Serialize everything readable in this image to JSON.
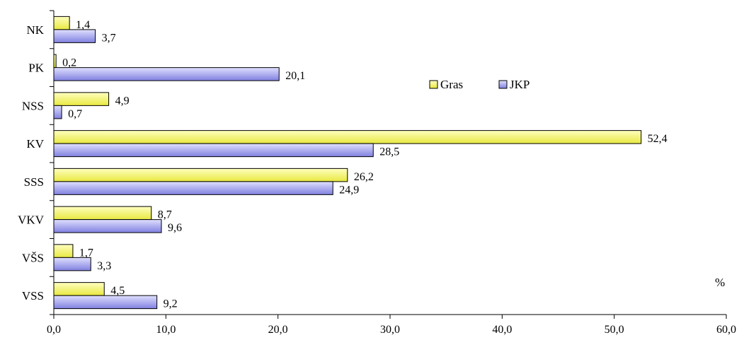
{
  "chart_data": {
    "type": "bar",
    "orientation": "horizontal",
    "categories": [
      "NK",
      "PK",
      "NSS",
      "KV",
      "SSS",
      "VKV",
      "VŠS",
      "VSS"
    ],
    "series": [
      {
        "name": "Gras",
        "values": [
          1.4,
          0.2,
          4.9,
          52.4,
          26.2,
          8.7,
          1.7,
          4.5
        ],
        "labels": [
          "1,4",
          "0,2",
          "4,9",
          "52,4",
          "26,2",
          "8,7",
          "1,7",
          "4,5"
        ],
        "color": "#ffffc0",
        "gradient_to": "#e8e840"
      },
      {
        "name": "JKP",
        "values": [
          3.7,
          20.1,
          0.7,
          28.5,
          24.9,
          9.6,
          3.3,
          9.2
        ],
        "labels": [
          "3,7",
          "20,1",
          "0,7",
          "28,5",
          "24,9",
          "9,6",
          "3,3",
          "9,2"
        ],
        "color": "#e0e0ff",
        "gradient_to": "#8080e0"
      }
    ],
    "xlim": [
      0,
      60
    ],
    "x_ticks": [
      "0,0",
      "10,0",
      "20,0",
      "30,0",
      "40,0",
      "50,0",
      "60,0"
    ],
    "x_tick_values": [
      0,
      10,
      20,
      30,
      40,
      50,
      60
    ],
    "unit": "%",
    "legend_position": "upper-middle",
    "grid": false
  }
}
